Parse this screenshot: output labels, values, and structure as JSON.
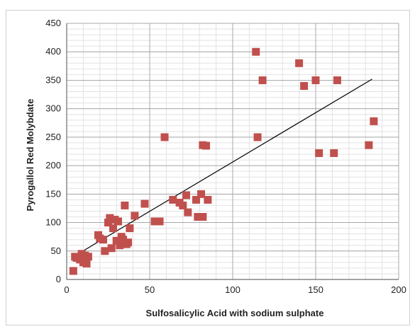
{
  "chart_data": {
    "type": "scatter",
    "title": "",
    "xlabel": "Sulfosalicylic Acid with sodium sulphate",
    "ylabel": "Pyrogallol Red Molybdate",
    "xlim": [
      0,
      200
    ],
    "ylim": [
      0,
      450
    ],
    "x_ticks": [
      0,
      50,
      100,
      150,
      200
    ],
    "y_ticks": [
      0,
      50,
      100,
      150,
      200,
      250,
      300,
      350,
      400,
      450
    ],
    "grid": true,
    "legend": "none",
    "marker": "square",
    "marker_color": "#c0504d",
    "line_color": "#000000",
    "points": [
      [
        4,
        15
      ],
      [
        5,
        40
      ],
      [
        6,
        38
      ],
      [
        8,
        35
      ],
      [
        9,
        45
      ],
      [
        10,
        30
      ],
      [
        11,
        42
      ],
      [
        12,
        28
      ],
      [
        13,
        40
      ],
      [
        19,
        78
      ],
      [
        20,
        72
      ],
      [
        22,
        70
      ],
      [
        23,
        50
      ],
      [
        25,
        100
      ],
      [
        26,
        108
      ],
      [
        27,
        55
      ],
      [
        28,
        90
      ],
      [
        29,
        105
      ],
      [
        30,
        68
      ],
      [
        31,
        102
      ],
      [
        32,
        60
      ],
      [
        33,
        75
      ],
      [
        34,
        70
      ],
      [
        35,
        130
      ],
      [
        36,
        62
      ],
      [
        37,
        65
      ],
      [
        38,
        90
      ],
      [
        41,
        112
      ],
      [
        47,
        133
      ],
      [
        53,
        102
      ],
      [
        56,
        102
      ],
      [
        59,
        250
      ],
      [
        64,
        140
      ],
      [
        68,
        135
      ],
      [
        70,
        130
      ],
      [
        72,
        148
      ],
      [
        73,
        118
      ],
      [
        78,
        140
      ],
      [
        79,
        110
      ],
      [
        82,
        110
      ],
      [
        81,
        150
      ],
      [
        82,
        236
      ],
      [
        84,
        235
      ],
      [
        85,
        140
      ],
      [
        114,
        400
      ],
      [
        115,
        250
      ],
      [
        118,
        350
      ],
      [
        140,
        380
      ],
      [
        143,
        340
      ],
      [
        150,
        350
      ],
      [
        152,
        222
      ],
      [
        161,
        222
      ],
      [
        163,
        350
      ],
      [
        182,
        236
      ],
      [
        185,
        278
      ]
    ],
    "trendline": {
      "x": [
        4,
        184
      ],
      "y": [
        40,
        352
      ]
    }
  }
}
